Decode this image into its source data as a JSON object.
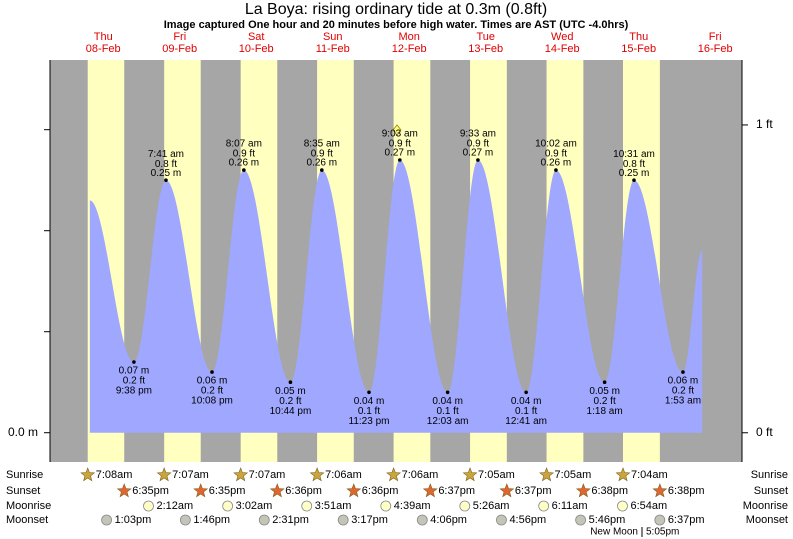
{
  "chart_data": {
    "type": "tide",
    "title": "La Boya: rising  ordinary tide at 0.3m (0.8ft)",
    "subtitle": "Image captured One hour and 20 minutes before high water. Times are AST (UTC -4.0hrs)",
    "day_names": [
      "Thu",
      "Fri",
      "Sat",
      "Sun",
      "Mon",
      "Tue",
      "Wed",
      "Thu",
      "Fri"
    ],
    "day_dates": [
      "08-Feb",
      "09-Feb",
      "10-Feb",
      "11-Feb",
      "12-Feb",
      "13-Feb",
      "14-Feb",
      "15-Feb",
      "16-Feb"
    ],
    "series": [
      {
        "name": "tide",
        "color": "#9fa7ff",
        "x": [
          7.8,
          21.63,
          31.68,
          46.13,
          56.12,
          70.73,
          80.58,
          95.38,
          105.05,
          120.05,
          129.55,
          144.68,
          154.03,
          169.3,
          178.52,
          193.88,
          199.9
        ],
        "values": [
          0.23,
          0.07,
          0.25,
          0.06,
          0.26,
          0.05,
          0.26,
          0.04,
          0.27,
          0.04,
          0.27,
          0.04,
          0.26,
          0.05,
          0.25,
          0.06,
          0.18
        ],
        "value_labels": [
          null,
          "0.07 m",
          "0.25 m",
          "0.06 m",
          "0.26 m",
          "0.05 m",
          "0.26 m",
          "0.04 m",
          "0.27 m",
          "0.04 m",
          "0.27 m",
          "0.04 m",
          "0.26 m",
          "0.05 m",
          "0.25 m",
          "0.06 m",
          null
        ],
        "ft_labels": [
          null,
          "0.2 ft",
          "0.8 ft",
          "0.2 ft",
          "0.9 ft",
          "0.2 ft",
          "0.9 ft",
          "0.1 ft",
          "0.9 ft",
          "0.1 ft",
          "0.9 ft",
          "0.1 ft",
          "0.9 ft",
          "0.2 ft",
          "0.8 ft",
          "0.2 ft",
          null
        ],
        "time_labels": [
          null,
          "9:38 pm",
          "7:41 am",
          "10:08 pm",
          "8:07 am",
          "10:44 pm",
          "8:35 am",
          "11:23 pm",
          "9:03 am",
          "12:03 am",
          "9:33 am",
          "12:41 am",
          "10:02 am",
          "1:18 am",
          "10:31 am",
          "1:53 am",
          null
        ]
      }
    ],
    "xlim": [
      -4.7,
      212.4
    ],
    "ylim": [
      -0.029,
      0.369
    ],
    "yticks": [
      {
        "value": 0,
        "label": "0.0 m"
      }
    ],
    "yminor_ticks": [
      0.1,
      0.2,
      0.3
    ],
    "y2lim": [
      -0.095,
      1.211
    ],
    "y2ticks": [
      {
        "value": 0,
        "label": "0 ft"
      },
      {
        "value": 1,
        "label": "1 ft"
      }
    ],
    "rows": {
      "sunrise": {
        "name": "Sunrise",
        "times": [
          "7:08am",
          "7:07am",
          "7:07am",
          "7:06am",
          "7:06am",
          "7:05am",
          "7:05am",
          "7:04am"
        ]
      },
      "sunset": {
        "name": "Sunset",
        "times": [
          "6:35pm",
          "6:35pm",
          "6:36pm",
          "6:36pm",
          "6:37pm",
          "6:37pm",
          "6:38pm",
          "6:38pm"
        ]
      },
      "moonrise": {
        "name": "Moonrise",
        "times": [
          null,
          "2:12am",
          "3:02am",
          "3:51am",
          "4:39am",
          "5:26am",
          "6:11am",
          "6:54am"
        ]
      },
      "moonset": {
        "name": "Moonset",
        "times": [
          "1:03pm",
          "1:46pm",
          "2:31pm",
          "3:17pm",
          "4:06pm",
          "4:56pm",
          "5:46pm",
          "6:37pm"
        ]
      }
    },
    "moon_phase": {
      "name": "New Moon",
      "time": "5:05pm"
    }
  }
}
